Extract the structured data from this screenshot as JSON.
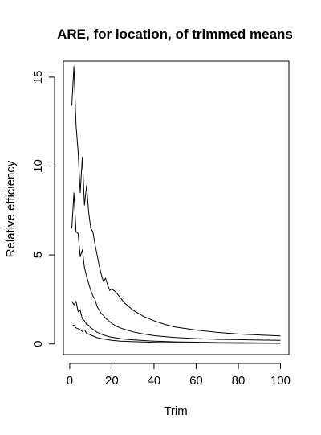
{
  "chart_data": {
    "type": "line",
    "title": "ARE, for location, of trimmed means",
    "xlabel": "Trim",
    "ylabel": "Relative efficiency",
    "xlim": [
      -3,
      104
    ],
    "ylim": [
      -0.6,
      15.9
    ],
    "xticks": [
      0,
      20,
      40,
      60,
      80,
      100
    ],
    "yticks": [
      0,
      5,
      10,
      15
    ],
    "grid": false,
    "x": [
      1,
      2,
      3,
      4,
      5,
      6,
      7,
      8,
      9,
      10,
      11,
      12,
      13,
      14,
      15,
      16,
      17,
      18,
      19,
      20,
      22,
      24,
      26,
      28,
      30,
      35,
      40,
      45,
      50,
      60,
      70,
      80,
      90,
      100
    ],
    "series": [
      {
        "values": [
          13.4,
          15.6,
          12.3,
          10.8,
          8.5,
          10.5,
          7.8,
          8.9,
          7.4,
          6.5,
          6.3,
          5.6,
          5.0,
          4.4,
          3.9,
          3.5,
          3.7,
          3.3,
          3.0,
          3.1,
          2.9,
          2.6,
          2.3,
          2.1,
          1.9,
          1.55,
          1.3,
          1.1,
          0.95,
          0.78,
          0.65,
          0.56,
          0.5,
          0.45
        ]
      },
      {
        "values": [
          6.5,
          8.5,
          6.3,
          6.2,
          4.9,
          5.3,
          4.3,
          3.8,
          3.4,
          3.0,
          2.7,
          2.5,
          2.1,
          1.9,
          1.7,
          1.6,
          1.45,
          1.35,
          1.25,
          1.15,
          1.0,
          0.9,
          0.82,
          0.75,
          0.68,
          0.56,
          0.47,
          0.41,
          0.36,
          0.3,
          0.26,
          0.24,
          0.22,
          0.2
        ]
      },
      {
        "values": [
          2.4,
          2.2,
          2.4,
          1.8,
          1.9,
          1.4,
          1.3,
          1.1,
          1.05,
          0.9,
          0.82,
          0.75,
          0.65,
          0.6,
          0.55,
          0.5,
          0.47,
          0.43,
          0.4,
          0.38,
          0.34,
          0.3,
          0.27,
          0.25,
          0.23,
          0.19,
          0.16,
          0.14,
          0.12,
          0.1,
          0.08,
          0.07,
          0.06,
          0.05
        ]
      },
      {
        "values": [
          1.0,
          1.05,
          0.9,
          0.85,
          0.8,
          0.7,
          0.8,
          0.6,
          0.55,
          0.5,
          0.45,
          0.4,
          0.35,
          0.33,
          0.3,
          0.28,
          0.26,
          0.24,
          0.22,
          0.2,
          0.18,
          0.16,
          0.15,
          0.14,
          0.13,
          0.11,
          0.09,
          0.08,
          0.07,
          0.06,
          0.05,
          0.04,
          0.04,
          0.03
        ]
      }
    ]
  }
}
